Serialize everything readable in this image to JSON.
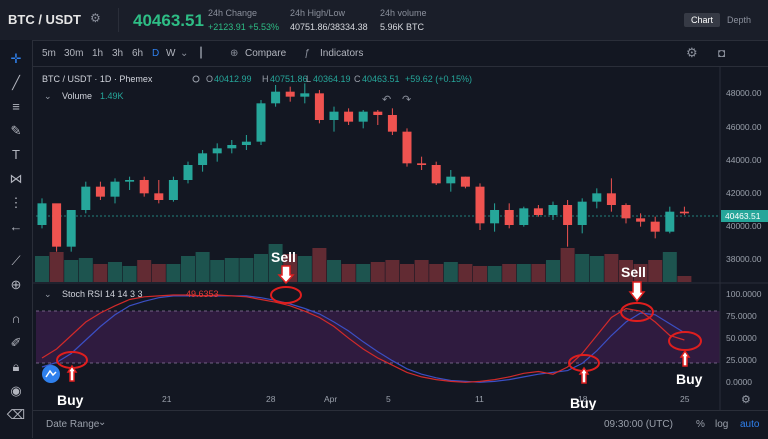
{
  "header": {
    "pair": "BTC / USDT",
    "price": "40463.51",
    "stats": [
      {
        "label": "24h Change",
        "value": "+2123.91 +5.53%",
        "positive": true
      },
      {
        "label": "24h High/Low",
        "value": "40751.86/38334.38",
        "positive": false
      },
      {
        "label": "24h volume",
        "value": "5.96K BTC",
        "positive": false
      }
    ],
    "view_toggle": {
      "active": "Chart",
      "inactive": "Depth"
    }
  },
  "toolbar": {
    "timeframes": [
      "5m",
      "30m",
      "1h",
      "3h",
      "6h",
      "D",
      "W"
    ],
    "selected": "D",
    "compare": "Compare",
    "indicators": "Indicators"
  },
  "legend": {
    "symbol": "BTC / USDT · 1D · Phemex",
    "o_label": "O",
    "o": "40412.99",
    "h_label": "H",
    "h": "40751.86",
    "l_label": "L",
    "l": "40364.19",
    "c_label": "C",
    "c": "40463.51",
    "change": "+59.62 (+0.15%)",
    "volume_label": "Volume",
    "volume_value": "1.49K"
  },
  "price_axis": {
    "ticks": [
      "48000.00",
      "46000.00",
      "44000.00",
      "42000.00",
      "40000.00",
      "38000.00"
    ],
    "current_label": "40463.51"
  },
  "indicator": {
    "label": "Stoch RSI 14 14 3 3",
    "k_value": "49.6353",
    "ticks": [
      "100.0000",
      "75.0000",
      "50.0000",
      "25.0000",
      "0.0000"
    ]
  },
  "time_axis": [
    "21",
    "28",
    "Apr",
    "5",
    "11",
    "18",
    "25"
  ],
  "annotations": [
    {
      "text": "Sell",
      "color": "#ffffff"
    },
    {
      "text": "Sell",
      "color": "#ffffff"
    },
    {
      "text": "Buy",
      "color": "#ffffff"
    },
    {
      "text": "Buy",
      "color": "#ffffff"
    },
    {
      "text": "Buy",
      "color": "#ffffff"
    }
  ],
  "bottom_bar": {
    "date_range": "Date Range",
    "time": "09:30:00 (UTC)",
    "percent": "%",
    "log": "log",
    "auto": "auto"
  },
  "colors": {
    "up": "#26a69a",
    "down": "#ef5350",
    "accent": "#2f80ed",
    "annot": "#e01e1e"
  },
  "chart_data": {
    "type": "candlestick",
    "candles": [
      [
        39700,
        41300,
        39500,
        41000
      ],
      [
        41000,
        40900,
        38100,
        38400
      ],
      [
        38400,
        40600,
        38100,
        40600
      ],
      [
        40600,
        42300,
        40400,
        42000
      ],
      [
        42000,
        42300,
        41200,
        41400
      ],
      [
        41400,
        42500,
        41000,
        42300
      ],
      [
        42300,
        42600,
        41800,
        42400
      ],
      [
        42400,
        42600,
        41400,
        41600
      ],
      [
        41600,
        42400,
        41000,
        41200
      ],
      [
        41200,
        42600,
        41100,
        42400
      ],
      [
        42400,
        43500,
        42200,
        43300
      ],
      [
        43300,
        44200,
        42900,
        44000
      ],
      [
        44000,
        44600,
        43500,
        44300
      ],
      [
        44300,
        44800,
        44000,
        44500
      ],
      [
        44500,
        45100,
        44200,
        44700
      ],
      [
        44700,
        47200,
        44500,
        47000
      ],
      [
        47000,
        48100,
        46800,
        47700
      ],
      [
        47700,
        48000,
        47100,
        47400
      ],
      [
        47400,
        48200,
        47000,
        47600
      ],
      [
        47600,
        47800,
        45800,
        46000
      ],
      [
        46000,
        46800,
        45300,
        46500
      ],
      [
        46500,
        46700,
        45700,
        45900
      ],
      [
        45900,
        46600,
        45500,
        46500
      ],
      [
        46500,
        46600,
        45700,
        46300
      ],
      [
        46300,
        46700,
        45100,
        45300
      ],
      [
        45300,
        45500,
        43200,
        43400
      ],
      [
        43400,
        43800,
        43000,
        43300
      ],
      [
        43300,
        43500,
        42100,
        42200
      ],
      [
        42200,
        43000,
        41700,
        42600
      ],
      [
        42600,
        42600,
        41900,
        42000
      ],
      [
        42000,
        42200,
        39400,
        39800
      ],
      [
        39800,
        41000,
        39300,
        40600
      ],
      [
        40600,
        41000,
        39500,
        39700
      ],
      [
        39700,
        40800,
        39600,
        40700
      ],
      [
        40700,
        40900,
        40200,
        40300
      ],
      [
        40300,
        41100,
        40000,
        40900
      ],
      [
        40900,
        41200,
        38400,
        39700
      ],
      [
        39700,
        41300,
        39200,
        41100
      ],
      [
        41100,
        41900,
        40700,
        41600
      ],
      [
        41600,
        42500,
        40500,
        40900
      ],
      [
        40900,
        41000,
        39800,
        40100
      ],
      [
        40100,
        40400,
        39600,
        39900
      ],
      [
        39900,
        40200,
        38900,
        39300
      ],
      [
        39300,
        40800,
        39200,
        40500
      ],
      [
        40500,
        40800,
        40300,
        40400
      ]
    ],
    "volume": [
      26,
      30,
      22,
      24,
      18,
      20,
      16,
      22,
      18,
      18,
      26,
      30,
      22,
      24,
      24,
      28,
      38,
      28,
      26,
      34,
      22,
      18,
      18,
      20,
      22,
      18,
      22,
      18,
      20,
      18,
      16,
      16,
      18,
      18,
      18,
      22,
      34,
      28,
      26,
      28,
      22,
      18,
      22,
      30,
      6
    ],
    "stoch_k": [
      30,
      40,
      55,
      70,
      80,
      88,
      95,
      98,
      99,
      100,
      100,
      99,
      100,
      99,
      98,
      95,
      92,
      88,
      82,
      75,
      65,
      52,
      40,
      30,
      22,
      14,
      9,
      6,
      4,
      3,
      4,
      6,
      9,
      13,
      15,
      12,
      20,
      35,
      55,
      75,
      85,
      82,
      70,
      55,
      50
    ],
    "stoch_d": [
      20,
      25,
      35,
      50,
      65,
      78,
      88,
      93,
      97,
      99,
      99,
      99,
      99,
      99,
      99,
      97,
      94,
      90,
      85,
      79,
      70,
      60,
      48,
      37,
      27,
      18,
      12,
      8,
      5,
      4,
      3,
      4,
      6,
      9,
      12,
      14,
      16,
      24,
      38,
      55,
      70,
      80,
      78,
      68,
      58
    ],
    "ylim_price": [
      37000,
      49000
    ],
    "ylim_indicator": [
      0,
      100
    ],
    "bands": [
      20,
      80
    ]
  }
}
